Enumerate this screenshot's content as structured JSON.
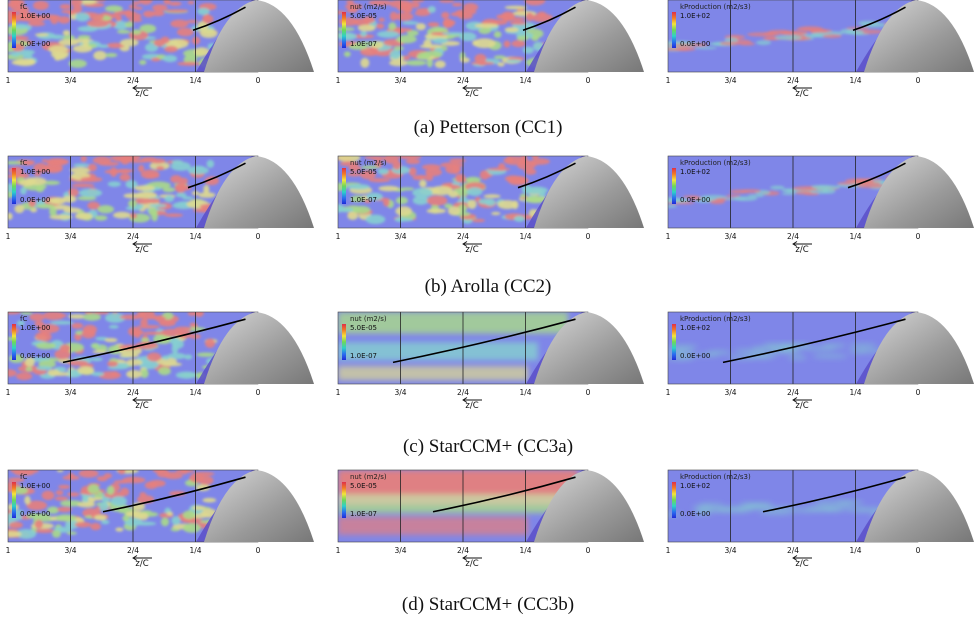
{
  "colors": {
    "background_blue": "#7f86e8",
    "high_red": "#e57f7d",
    "mid_green": "#a9d98a",
    "mid_cyan": "#86cfd0",
    "mid_yellow": "#ded98f",
    "body_gray": "#9a9a9a",
    "bow_line": "#000000"
  },
  "ticks": [
    "1",
    "3/4",
    "2/4",
    "1/4",
    "0"
  ],
  "axis_label": "z/C",
  "fields": [
    {
      "label": "fC",
      "max": "1.0E+00",
      "min": "0.0E+00"
    },
    {
      "label": "nut (m2/s)",
      "max": "5.0E-05",
      "min": "1.0E-07"
    },
    {
      "label": "kProduction (m2/s3)",
      "max": "1.0E+02",
      "min": "0.0E+00"
    }
  ],
  "cases": [
    {
      "caption": "(a) Petterson (CC1)"
    },
    {
      "caption": "(b) Arolla (CC2)"
    },
    {
      "caption": "(c) StarCCM+ (CC3a)"
    },
    {
      "caption": "(d) StarCCM+ (CC3b)"
    }
  ]
}
